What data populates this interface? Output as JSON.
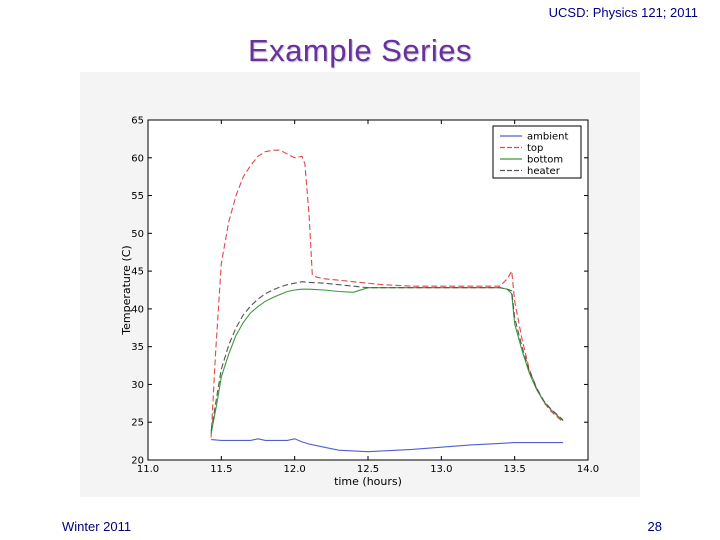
{
  "slide": {
    "header_note": "UCSD: Physics 121; 2011",
    "title": "Example Series",
    "footer_left": "Winter 2011",
    "page_number": "28"
  },
  "chart_data": {
    "type": "line",
    "xlabel": "time (hours)",
    "ylabel": "Temperature (C)",
    "xlim": [
      11.0,
      14.0
    ],
    "ylim": [
      20,
      65
    ],
    "x_ticks": [
      "11.0",
      "11.5",
      "12.0",
      "12.5",
      "13.0",
      "13.5",
      "14.0"
    ],
    "y_ticks": [
      "20",
      "25",
      "30",
      "35",
      "40",
      "45",
      "50",
      "55",
      "60",
      "65"
    ],
    "grid": false,
    "legend_position": "top-right",
    "series": [
      {
        "name": "ambient",
        "color": "#4f5fd0",
        "style": "solid",
        "x": [
          11.43,
          11.5,
          11.6,
          11.7,
          11.75,
          11.8,
          11.9,
          11.95,
          12.0,
          12.05,
          12.1,
          12.2,
          12.3,
          12.4,
          12.5,
          12.6,
          12.8,
          13.0,
          13.2,
          13.4,
          13.5,
          13.6,
          13.7,
          13.83
        ],
        "y": [
          22.7,
          22.6,
          22.6,
          22.6,
          22.8,
          22.6,
          22.6,
          22.6,
          22.8,
          22.4,
          22.1,
          21.7,
          21.3,
          21.2,
          21.1,
          21.2,
          21.4,
          21.7,
          22.0,
          22.2,
          22.3,
          22.3,
          22.3,
          22.3
        ]
      },
      {
        "name": "top",
        "color": "#e04848",
        "style": "dashed",
        "x": [
          11.43,
          11.46,
          11.5,
          11.55,
          11.6,
          11.65,
          11.7,
          11.75,
          11.8,
          11.85,
          11.9,
          11.95,
          12.0,
          12.05,
          12.07,
          12.1,
          12.12,
          12.15,
          12.2,
          12.3,
          12.4,
          12.5,
          12.6,
          12.8,
          13.0,
          13.2,
          13.4,
          13.45,
          13.48,
          13.5,
          13.55,
          13.6,
          13.65,
          13.7,
          13.75,
          13.83
        ],
        "y": [
          23.0,
          34.0,
          46.0,
          51.5,
          55.0,
          57.5,
          59.0,
          60.2,
          60.8,
          61.0,
          61.0,
          60.5,
          60.0,
          60.2,
          59.2,
          52.0,
          44.5,
          44.2,
          44.0,
          43.8,
          43.6,
          43.4,
          43.2,
          43.0,
          43.0,
          43.0,
          43.0,
          44.0,
          45.0,
          41.0,
          36.0,
          32.0,
          29.5,
          27.6,
          26.4,
          25.0
        ]
      },
      {
        "name": "bottom",
        "color": "#3a9a3a",
        "style": "solid",
        "x": [
          11.43,
          11.47,
          11.5,
          11.55,
          11.6,
          11.65,
          11.7,
          11.75,
          11.8,
          11.85,
          11.9,
          11.95,
          12.0,
          12.05,
          12.1,
          12.2,
          12.3,
          12.4,
          12.5,
          12.6,
          12.8,
          13.0,
          13.2,
          13.4,
          13.45,
          13.48,
          13.5,
          13.55,
          13.6,
          13.65,
          13.7,
          13.75,
          13.83
        ],
        "y": [
          23.5,
          27.5,
          31.0,
          34.0,
          36.5,
          38.2,
          39.5,
          40.3,
          41.0,
          41.5,
          41.9,
          42.3,
          42.5,
          42.6,
          42.6,
          42.5,
          42.3,
          42.2,
          42.8,
          42.8,
          42.8,
          42.8,
          42.8,
          42.8,
          42.6,
          42.0,
          38.0,
          34.5,
          31.5,
          29.3,
          27.7,
          26.6,
          25.2
        ]
      },
      {
        "name": "heater",
        "color": "#555555",
        "style": "dashed",
        "x": [
          11.43,
          11.47,
          11.5,
          11.55,
          11.6,
          11.65,
          11.7,
          11.75,
          11.8,
          11.85,
          11.9,
          11.95,
          12.0,
          12.05,
          12.1,
          12.2,
          12.3,
          12.4,
          12.5,
          12.6,
          12.8,
          13.0,
          13.2,
          13.4,
          13.45,
          13.48,
          13.5,
          13.55,
          13.6,
          13.65,
          13.7,
          13.75,
          13.83
        ],
        "y": [
          23.8,
          28.5,
          32.0,
          35.2,
          37.5,
          39.2,
          40.4,
          41.3,
          42.0,
          42.5,
          42.9,
          43.2,
          43.4,
          43.6,
          43.5,
          43.4,
          43.2,
          43.0,
          42.8,
          42.8,
          42.8,
          42.8,
          42.8,
          42.8,
          42.6,
          42.4,
          38.8,
          35.0,
          31.8,
          29.5,
          27.8,
          26.7,
          25.3
        ]
      }
    ]
  }
}
